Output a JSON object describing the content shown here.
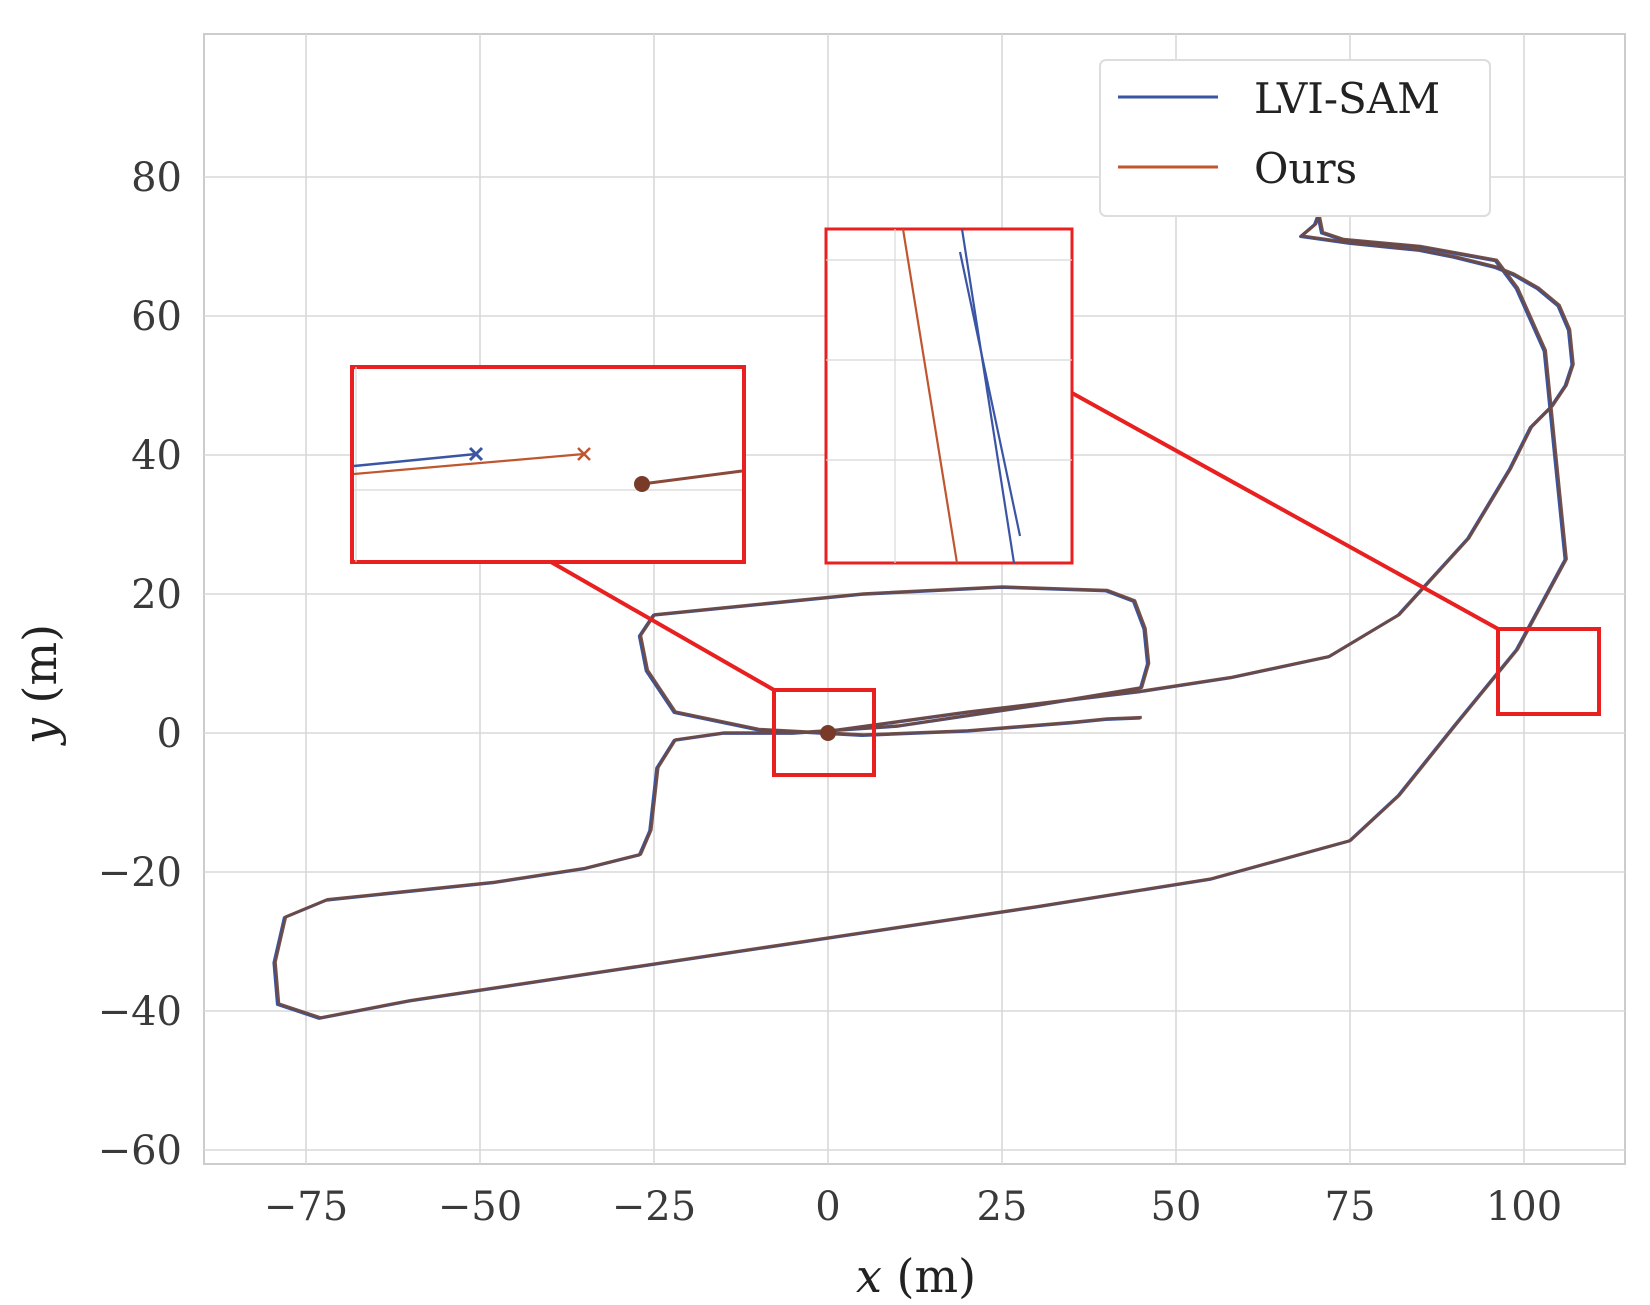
{
  "chart_data": {
    "type": "line",
    "xlabel_var": "x",
    "xlabel_unit": "(m)",
    "ylabel_var": "y",
    "ylabel_unit": "(m)",
    "xlim": [
      -88,
      115
    ],
    "ylim": [
      -63,
      100
    ],
    "xticks": [
      -75,
      -50,
      -25,
      0,
      25,
      50,
      75,
      100
    ],
    "yticks": [
      -60,
      -40,
      -20,
      0,
      20,
      40,
      60,
      80
    ],
    "xtick_labels": [
      "−75",
      "−50",
      "−25",
      "0",
      "25",
      "50",
      "75",
      "100"
    ],
    "ytick_labels": [
      "−60",
      "−40",
      "−20",
      "0",
      "20",
      "40",
      "60",
      "80"
    ],
    "grid": true,
    "legend_position": "top-right",
    "series": [
      {
        "name": "LVI-SAM",
        "color": "#3a55a4",
        "x": [
          -0.3,
          20,
          45,
          58,
          72,
          82,
          92,
          98,
          101,
          104,
          106,
          107,
          106.5,
          105,
          102,
          98.5,
          96,
          90,
          85,
          75,
          68,
          70,
          70.5,
          71,
          74,
          85,
          96,
          99,
          103,
          104.5,
          106,
          99,
          90,
          82,
          75,
          55,
          30,
          0,
          -30,
          -60,
          -73,
          -79,
          -79.5,
          -78,
          -72,
          -48,
          -35,
          -27,
          -25.5,
          -24.5,
          -22,
          -15,
          -5,
          10,
          30,
          45,
          46,
          45.5,
          44,
          40,
          25,
          5,
          -10,
          -25,
          -27,
          -26,
          -22,
          -10,
          5,
          20,
          35,
          40,
          45
        ],
        "y": [
          0.2,
          3,
          6,
          8,
          11,
          17,
          28,
          38,
          44,
          47,
          50,
          53,
          58,
          61.5,
          64,
          66,
          67,
          68.5,
          69.5,
          70.5,
          71.5,
          73.2,
          74.5,
          72,
          71,
          70,
          68,
          64,
          55,
          40,
          25,
          12,
          1,
          -9,
          -15.5,
          -21,
          -25,
          -29.5,
          -34,
          -38.5,
          -41,
          -39,
          -33,
          -26.5,
          -24,
          -21.5,
          -19.5,
          -17.5,
          -14,
          -5,
          -1,
          0,
          0,
          1,
          4,
          6.5,
          10,
          15,
          19,
          20.5,
          21,
          20,
          18.5,
          17,
          14,
          9,
          3,
          0.5,
          -0.3,
          0.3,
          1.5,
          2,
          2.2
        ],
        "y_note": ""
      },
      {
        "name": "Ours",
        "color": "#c0562e",
        "x": [
          -0.3,
          20,
          45,
          58,
          72,
          82,
          92,
          98,
          101,
          104,
          106,
          107,
          106.5,
          105,
          102,
          98.5,
          96,
          90,
          85,
          75,
          68,
          70,
          70.5,
          71,
          74,
          85,
          96,
          99,
          103,
          104.5,
          106,
          99,
          90,
          82,
          75,
          55,
          30,
          0,
          -30,
          -60,
          -73,
          -79,
          -79.5,
          -78,
          -72,
          -48,
          -35,
          -27,
          -25.5,
          -24.5,
          -22,
          -15,
          -5,
          10,
          30,
          45,
          46,
          45.5,
          44,
          40,
          25,
          5,
          -10,
          -25,
          -27,
          -26,
          -22,
          -10,
          5,
          20,
          35,
          40,
          45
        ],
        "y": [
          0.2,
          3,
          6,
          8,
          11,
          17,
          28,
          38,
          44,
          47,
          50,
          53,
          58,
          61.5,
          64,
          66,
          67,
          68.5,
          69.5,
          70.5,
          71.5,
          73.2,
          74.5,
          72,
          71,
          70,
          68,
          64,
          55,
          40,
          25,
          12,
          1,
          -9,
          -15.5,
          -21,
          -25,
          -29.5,
          -34,
          -38.5,
          -41,
          -39,
          -33,
          -26.5,
          -24,
          -21.5,
          -19.5,
          -17.5,
          -14,
          -5,
          -1,
          0,
          0,
          1,
          4,
          6.5,
          10,
          15,
          19,
          20.5,
          21,
          20,
          18.5,
          17,
          14,
          9,
          3,
          0.5,
          -0.3,
          0.3,
          1.5,
          2,
          2.2
        ]
      }
    ],
    "start_marker": {
      "x": 0,
      "y": 0,
      "color": "#7a3a28"
    }
  },
  "colors": {
    "zoom_box": "#e8201f",
    "grid": "#d8d8d8",
    "frame": "#cccccc",
    "traj_combined": "#6b4a45"
  }
}
